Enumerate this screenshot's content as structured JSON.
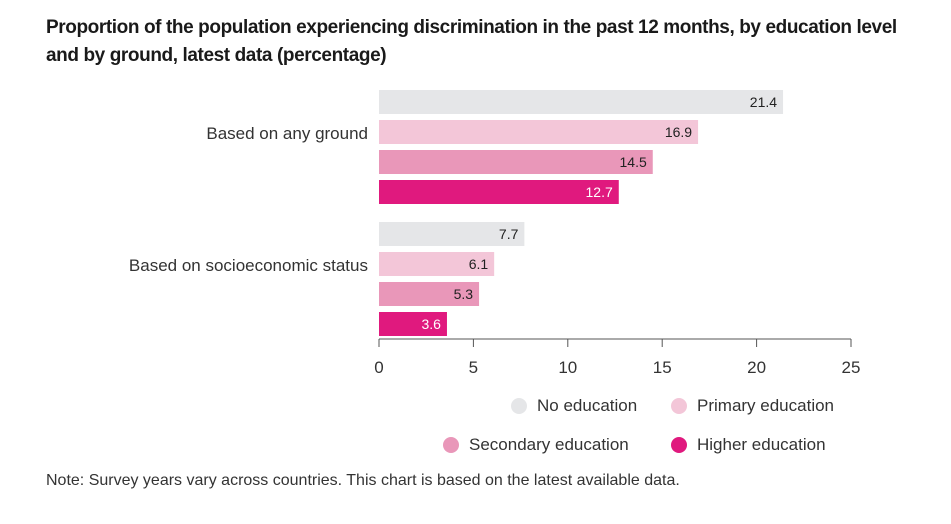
{
  "chart_data": {
    "type": "bar",
    "orientation": "horizontal",
    "title": "Proportion of the population experiencing discrimination in the past 12 months, by education level and by ground, latest data (percentage)",
    "categories": [
      "Based on any ground",
      "Based on socioeconomic status"
    ],
    "series": [
      {
        "name": "No education",
        "color": "#e5e6e8",
        "label_color": "#222222",
        "values": [
          21.4,
          7.7
        ]
      },
      {
        "name": "Primary education",
        "color": "#f3c6d8",
        "label_color": "#222222",
        "values": [
          16.9,
          6.1
        ]
      },
      {
        "name": "Secondary education",
        "color": "#e997b9",
        "label_color": "#222222",
        "values": [
          14.5,
          5.3
        ]
      },
      {
        "name": "Higher education",
        "color": "#e0197e",
        "label_color": "#ffffff",
        "values": [
          12.7,
          3.6
        ]
      }
    ],
    "xlabel": "",
    "ylabel": "",
    "xlim": [
      0,
      25
    ],
    "xticks": [
      0,
      5,
      10,
      15,
      20,
      25
    ],
    "grid": false,
    "legend_position": "bottom-right",
    "note": "Note: Survey years vary across countries. This chart is based on the latest available data."
  }
}
